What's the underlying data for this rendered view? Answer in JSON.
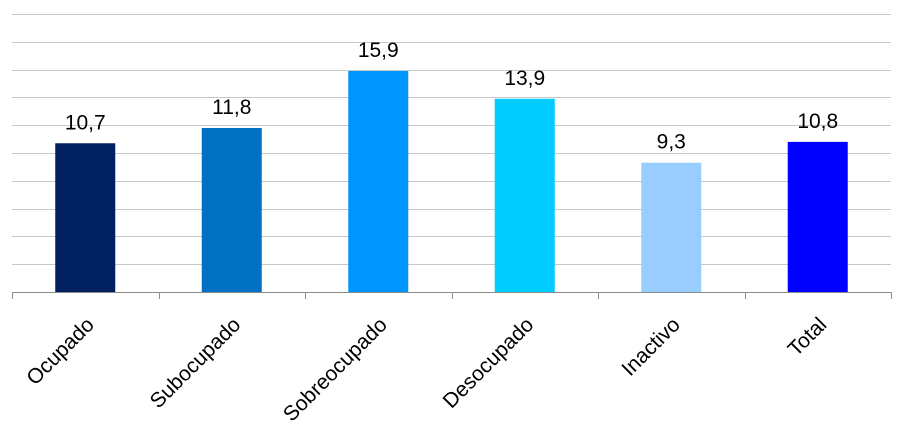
{
  "chart_data": {
    "type": "bar",
    "title": "",
    "xlabel": "",
    "ylabel": "",
    "categories": [
      "Ocupado",
      "Subocupado",
      "Sobreocupado",
      "Desocupado",
      "Inactivo",
      "Total"
    ],
    "values": [
      10.7,
      11.8,
      15.9,
      13.9,
      9.3,
      10.8
    ],
    "value_labels": [
      "10,7",
      "11,8",
      "15,9",
      "13,9",
      "9,3",
      "10,8"
    ],
    "colors": [
      "#002060",
      "#0070C0",
      "#0096FF",
      "#00CCFF",
      "#99CCFF",
      "#0000FF"
    ],
    "ylim": [
      0,
      20
    ],
    "grid": true,
    "y_tick_step": 2,
    "y_tick_labels_visible": false,
    "legend": "none"
  }
}
